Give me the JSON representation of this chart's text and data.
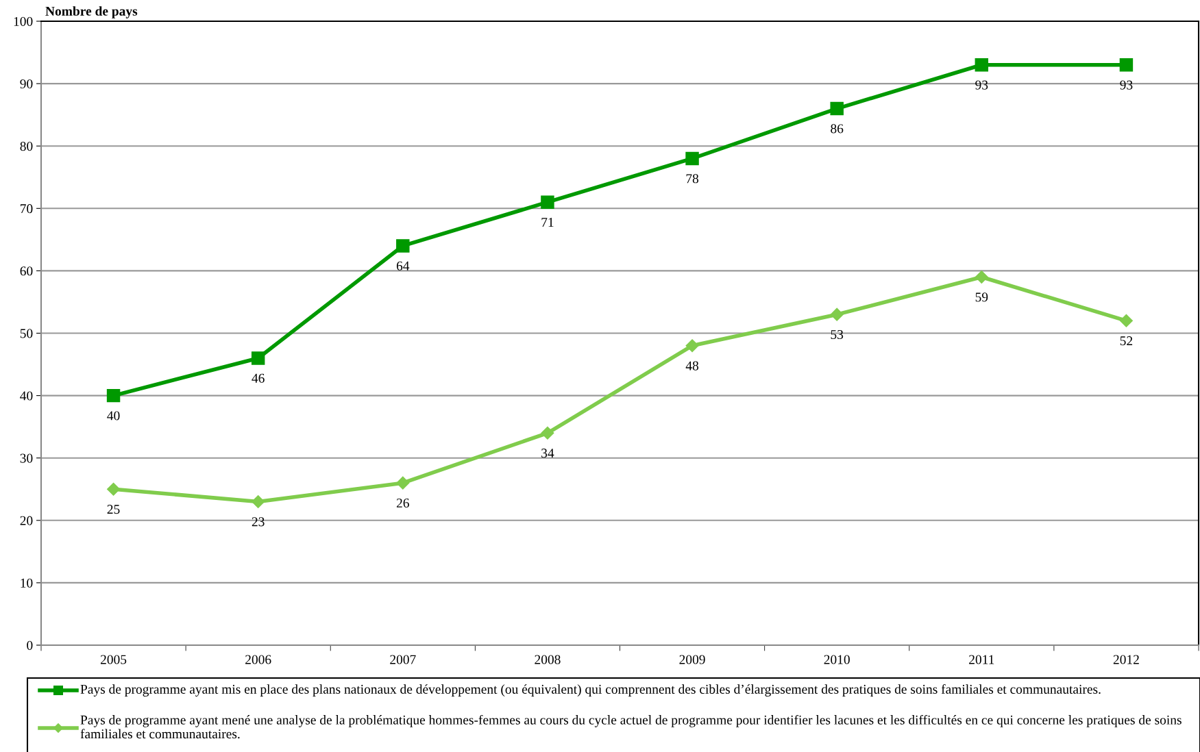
{
  "chart_data": {
    "type": "line",
    "ylabel": "Nombre de pays",
    "categories": [
      "2005",
      "2006",
      "2007",
      "2008",
      "2009",
      "2010",
      "2011",
      "2012"
    ],
    "series": [
      {
        "name": "Pays de programme ayant mis en place des plans nationaux de développement (ou équivalent) qui comprennent des cibles d’élargissement des pratiques de soins familiales et communautaires.",
        "color": "#009900",
        "marker": "square",
        "values": [
          40,
          46,
          64,
          71,
          78,
          86,
          93,
          93
        ]
      },
      {
        "name": "Pays de programme ayant mené une analyse de la problématique hommes-femmes au cours du cycle actuel de programme pour identifier les lacunes et les difficultés en ce qui concerne les pratiques de soins familiales et communautaires.",
        "color": "#80cc4c",
        "marker": "diamond",
        "values": [
          25,
          23,
          26,
          34,
          48,
          53,
          59,
          52
        ]
      }
    ],
    "ylim": [
      0,
      100
    ],
    "yticks": [
      0,
      10,
      20,
      30,
      40,
      50,
      60,
      70,
      80,
      90,
      100
    ],
    "grid": "y",
    "legend": "bottom",
    "data_labels": true,
    "line_style": "solid"
  }
}
